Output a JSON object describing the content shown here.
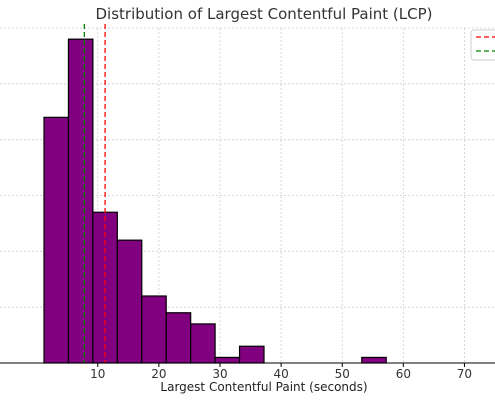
{
  "chart_data": {
    "type": "bar",
    "title": "Distribution of Largest Contentful Paint (LCP)",
    "xlabel": "Largest Contentful Paint (seconds)",
    "ylabel": "",
    "xlim": [
      -6,
      75
    ],
    "ylim": [
      0,
      60
    ],
    "x_ticks": [
      10,
      20,
      30,
      40,
      50,
      60,
      70
    ],
    "grid": true,
    "bin_width": 4,
    "bins": [
      {
        "x0": 1.2,
        "x1": 5.2,
        "count": 44
      },
      {
        "x0": 5.2,
        "x1": 9.2,
        "count": 58
      },
      {
        "x0": 9.2,
        "x1": 13.2,
        "count": 27
      },
      {
        "x0": 13.2,
        "x1": 17.2,
        "count": 22
      },
      {
        "x0": 17.2,
        "x1": 21.2,
        "count": 12
      },
      {
        "x0": 21.2,
        "x1": 25.2,
        "count": 9
      },
      {
        "x0": 25.2,
        "x1": 29.2,
        "count": 7
      },
      {
        "x0": 29.2,
        "x1": 33.2,
        "count": 1
      },
      {
        "x0": 33.2,
        "x1": 37.2,
        "count": 3
      },
      {
        "x0": 53.2,
        "x1": 57.2,
        "count": 1
      }
    ],
    "reference_lines": [
      {
        "x": 11.2,
        "color": "#ff0000",
        "style": "dashed"
      },
      {
        "x": 7.8,
        "color": "#008000",
        "style": "dashed"
      }
    ],
    "legend": {
      "placement": "top-right",
      "entries": [
        {
          "color": "#ff0000",
          "style": "dashed"
        },
        {
          "color": "#008000",
          "style": "dashed"
        }
      ]
    },
    "colors": {
      "bar_fill": "#800080",
      "bar_edge": "#000000",
      "grid": "#cccccc"
    }
  }
}
